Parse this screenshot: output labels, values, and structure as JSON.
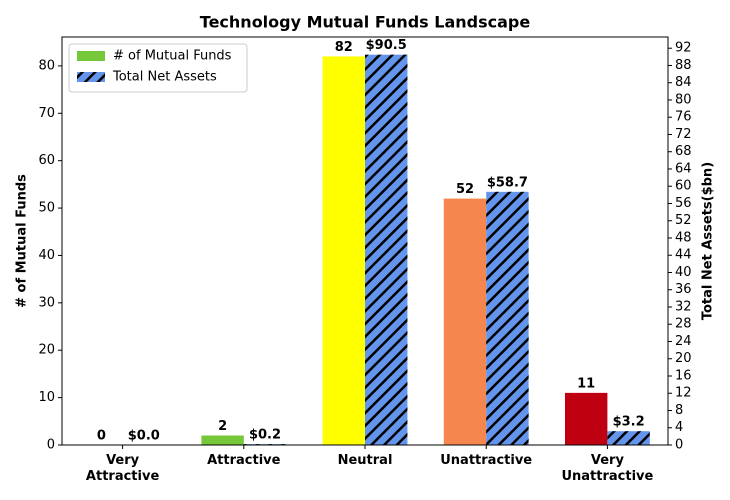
{
  "chart_data": {
    "type": "bar",
    "title": "Technology Mutual Funds Landscape",
    "categories": [
      "Very Attractive",
      "Attractive",
      "Neutral",
      "Unattractive",
      "Very Unattractive"
    ],
    "series": [
      {
        "name": "# of Mutual Funds",
        "color": "#76c83a",
        "colors": [
          "#76c83a",
          "#76c83a",
          "#ffff00",
          "#f5874e",
          "#bf0011"
        ],
        "values": [
          0,
          2,
          82,
          52,
          11
        ]
      },
      {
        "name": "Total Net Assets",
        "color": "#6495ed",
        "hatch": true,
        "axis": "y2",
        "values": [
          0.0,
          0.2,
          90.5,
          58.7,
          3.2
        ],
        "value_labels": [
          "$0.0",
          "$0.2",
          "$90.5",
          "$58.7",
          "$3.2"
        ]
      }
    ],
    "ylabel": "# of Mutual Funds",
    "y2label": "Total Net Assets($bn)",
    "ylim": [
      0,
      86.1
    ],
    "yticks": [
      0,
      10,
      20,
      30,
      40,
      50,
      60,
      70,
      80
    ],
    "y2lim": [
      0,
      94.6
    ],
    "y2ticks": [
      0,
      4,
      8,
      12,
      16,
      20,
      24,
      28,
      32,
      36,
      40,
      44,
      48,
      52,
      56,
      60,
      64,
      68,
      72,
      76,
      80,
      84,
      88,
      92
    ],
    "legend": "upper-left"
  }
}
